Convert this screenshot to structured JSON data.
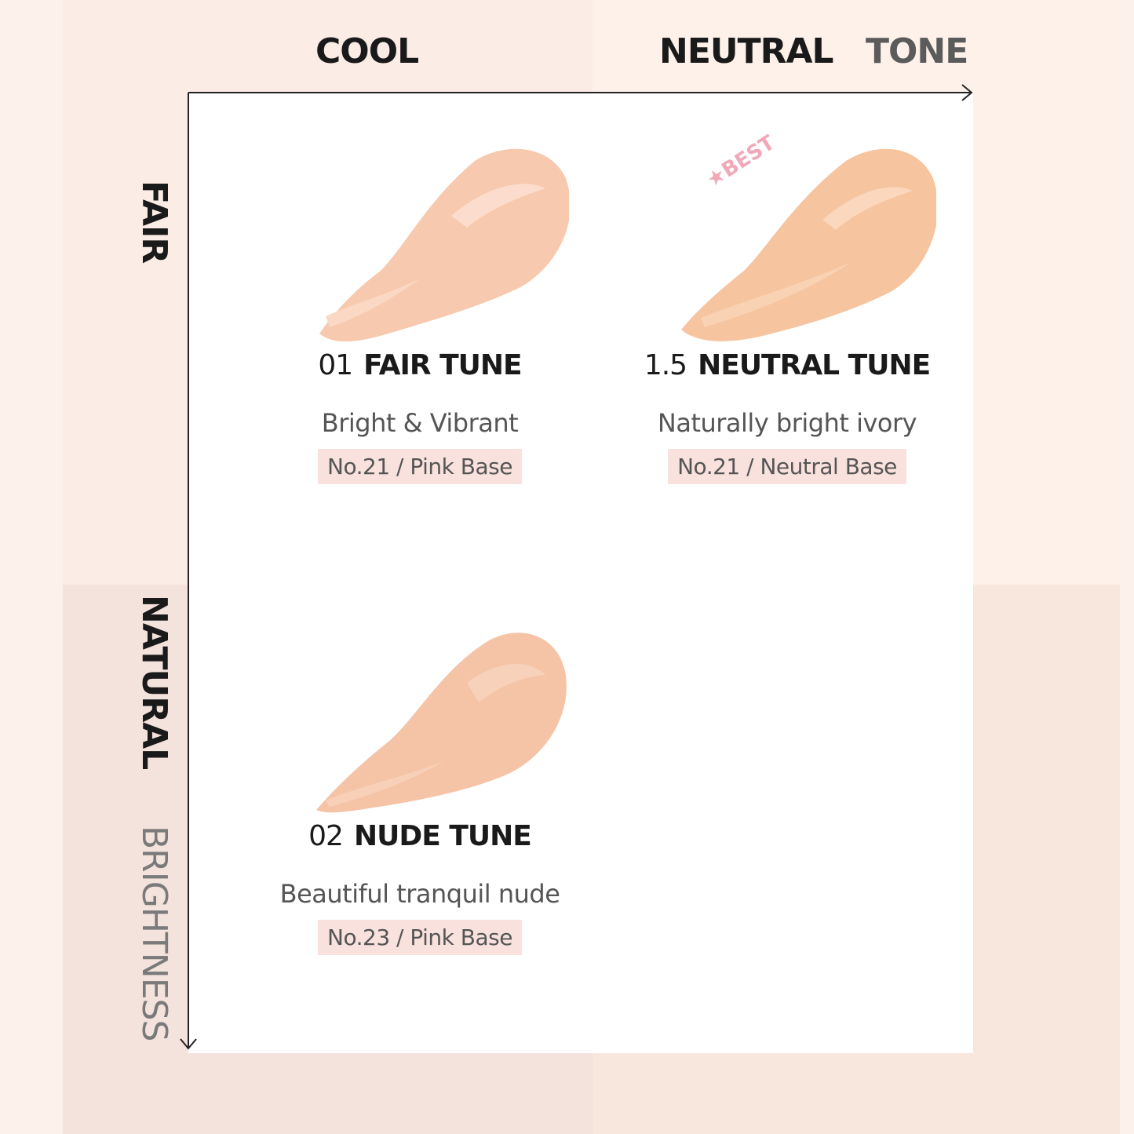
{
  "axes": {
    "tone_title": "TONE",
    "tone_left": "COOL",
    "tone_right": "NEUTRAL",
    "brightness_title": "BRIGHTNESS",
    "brightness_top": "FAIR",
    "brightness_bottom": "NATURAL"
  },
  "shades": [
    {
      "number": "01",
      "name": "FAIR TUNE",
      "description": "Bright & Vibrant",
      "tag": "No.21 / Pink Base",
      "color": "#f7c9ae"
    },
    {
      "number": "1.5",
      "name": "NEUTRAL TUNE",
      "description": "Naturally bright ivory",
      "tag": "No.21 / Neutral Base",
      "color": "#f6c49f",
      "badge": "★BEST"
    },
    {
      "number": "02",
      "name": "NUDE TUNE",
      "description": "Beautiful tranquil nude",
      "tag": "No.23 / Pink Base",
      "color": "#f5c4a7"
    }
  ],
  "colors": {
    "best_badge": "#f2a8b8",
    "tag_bg": "#f9e2dd"
  }
}
